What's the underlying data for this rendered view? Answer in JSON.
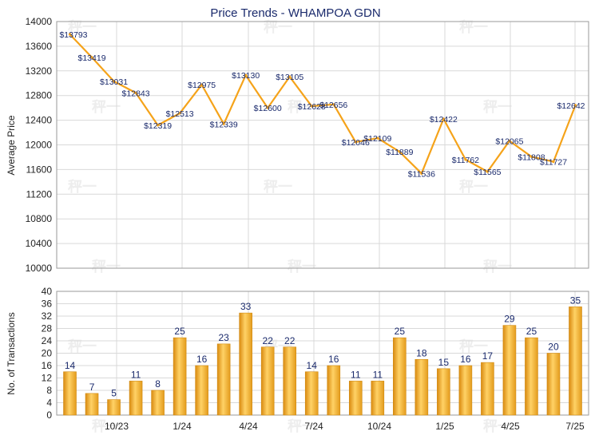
{
  "chart_data": [
    {
      "type": "line",
      "title": "Price Trends - WHAMPOA GDN",
      "ylabel": "Average Price",
      "ylim": [
        10000,
        14000
      ],
      "yticks": [
        10000,
        10400,
        10800,
        11200,
        11600,
        12000,
        12400,
        12800,
        13200,
        13600,
        14000
      ],
      "x_tick_labels": [
        "10/23",
        "1/24",
        "4/24",
        "7/24",
        "10/24",
        "1/25",
        "4/25",
        "7/25"
      ],
      "grid": true,
      "color": "#F5A31A",
      "series": [
        {
          "values": [
            13793,
            13419,
            13031,
            12843,
            12319,
            12513,
            12975,
            12339,
            13130,
            12600,
            13105,
            12628,
            12656,
            12046,
            12109,
            11889,
            11536,
            12422,
            11762,
            11565,
            12065,
            11808,
            11727,
            12642
          ],
          "labels": [
            "$13793",
            "$13419",
            "$13031",
            "$12843",
            "$12319",
            "$12513",
            "$12975",
            "$12339",
            "$13130",
            "$12600",
            "$13105",
            "$12628",
            "$12656",
            "$12046",
            "$12109",
            "$11889",
            "$11536",
            "$12422",
            "$11762",
            "$11565",
            "$12065",
            "$11808",
            "$11727",
            "$12642"
          ]
        }
      ]
    },
    {
      "type": "bar",
      "ylabel": "No. of Transactions",
      "ylim": [
        0,
        40
      ],
      "yticks": [
        0,
        4,
        8,
        12,
        16,
        20,
        24,
        28,
        32,
        36,
        40
      ],
      "x_tick_labels": [
        "10/23",
        "1/24",
        "4/24",
        "7/24",
        "10/24",
        "1/25",
        "4/25",
        "7/25"
      ],
      "grid": true,
      "color": "#F5A31A",
      "values": [
        14,
        7,
        5,
        11,
        8,
        25,
        16,
        23,
        33,
        22,
        22,
        14,
        16,
        11,
        11,
        25,
        18,
        15,
        16,
        17,
        29,
        25,
        20,
        35
      ]
    }
  ]
}
